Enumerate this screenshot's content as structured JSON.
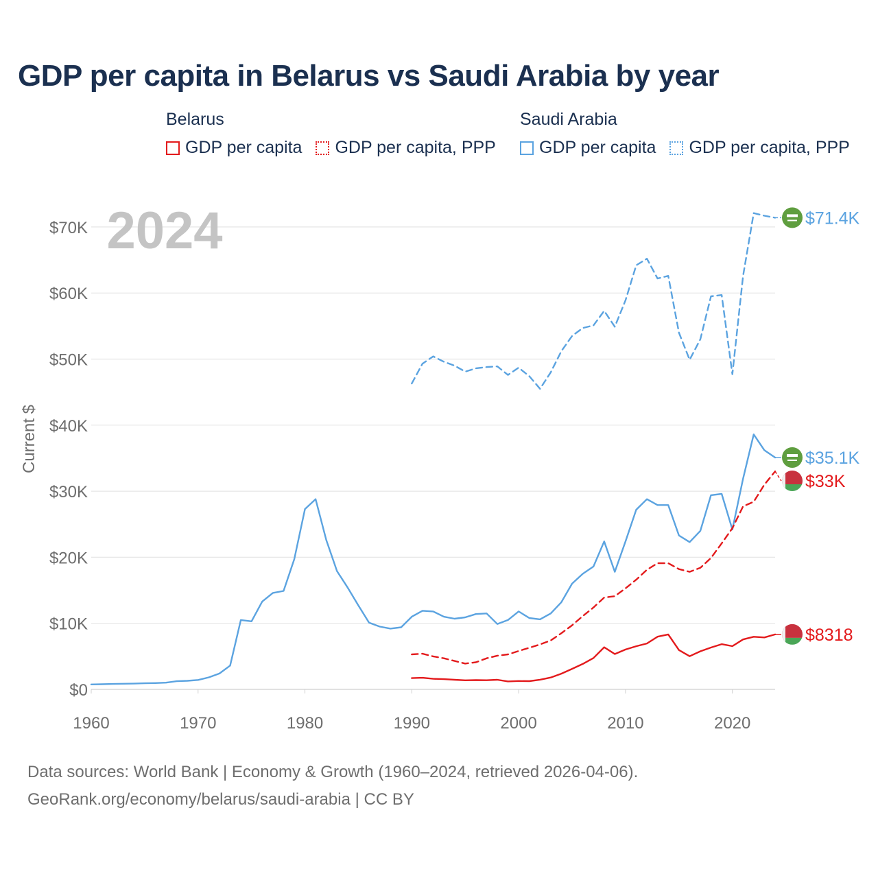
{
  "title": "GDP per capita in Belarus vs Saudi Arabia by year",
  "legend": {
    "groups": [
      {
        "country": "Belarus",
        "items": [
          {
            "label": "GDP per capita",
            "color": "#e31a1c",
            "style": "solid"
          },
          {
            "label": "GDP per capita, PPP",
            "color": "#e31a1c",
            "style": "dotted"
          }
        ]
      },
      {
        "country": "Saudi Arabia",
        "items": [
          {
            "label": "GDP per capita",
            "color": "#5ba3e0",
            "style": "solid"
          },
          {
            "label": "GDP per capita, PPP",
            "color": "#5ba3e0",
            "style": "dotted"
          }
        ]
      }
    ]
  },
  "source": {
    "line1": "Data sources: World Bank | Economy & Growth (1960–2024, retrieved 2026-04-06).",
    "line2": "GeoRank.org/economy/belarus/saudi-arabia | CC BY"
  },
  "chart_data": {
    "type": "line",
    "title": "GDP per capita in Belarus vs Saudi Arabia by year",
    "year_label": "2024",
    "ylabel": "Current $",
    "xlabel": "",
    "xlim": [
      1960,
      2024
    ],
    "ylim": [
      0,
      75000
    ],
    "x_ticks": [
      1960,
      1970,
      1980,
      1990,
      2000,
      2010,
      2020
    ],
    "y_ticks": [
      {
        "value": 0,
        "label": "$0"
      },
      {
        "value": 10000,
        "label": "$10K"
      },
      {
        "value": 20000,
        "label": "$20K"
      },
      {
        "value": 30000,
        "label": "$30K"
      },
      {
        "value": 40000,
        "label": "$40K"
      },
      {
        "value": 50000,
        "label": "$50K"
      },
      {
        "value": 60000,
        "label": "$60K"
      },
      {
        "value": 70000,
        "label": "$70K"
      }
    ],
    "series": [
      {
        "name": "Saudi Arabia GDP per capita PPP",
        "country": "Saudi Arabia",
        "color": "#5ba3e0",
        "dash": "dashed",
        "end_label": "$71.4K",
        "flag": "saudi",
        "x": [
          1990,
          1991,
          1992,
          1993,
          1994,
          1995,
          1996,
          1997,
          1998,
          1999,
          2000,
          2001,
          2002,
          2003,
          2004,
          2005,
          2006,
          2007,
          2008,
          2009,
          2010,
          2011,
          2012,
          2013,
          2014,
          2015,
          2016,
          2017,
          2018,
          2019,
          2020,
          2021,
          2022,
          2023,
          2024
        ],
        "values": [
          46300,
          49300,
          50400,
          49600,
          49000,
          48100,
          48600,
          48800,
          48900,
          47600,
          48700,
          47400,
          45500,
          48000,
          51200,
          53500,
          54700,
          55100,
          57300,
          54900,
          58900,
          64200,
          65200,
          62200,
          62600,
          54000,
          49900,
          53000,
          59500,
          59700,
          47700,
          62600,
          72100,
          71700,
          71400
        ]
      },
      {
        "name": "Saudi Arabia GDP per capita",
        "country": "Saudi Arabia",
        "color": "#5ba3e0",
        "dash": "solid",
        "end_label": "$35.1K",
        "flag": "saudi",
        "x": [
          1960,
          1961,
          1962,
          1963,
          1964,
          1965,
          1966,
          1967,
          1968,
          1969,
          1970,
          1971,
          1972,
          1973,
          1974,
          1975,
          1976,
          1977,
          1978,
          1979,
          1980,
          1981,
          1982,
          1983,
          1984,
          1985,
          1986,
          1987,
          1988,
          1989,
          1990,
          1991,
          1992,
          1993,
          1994,
          1995,
          1996,
          1997,
          1998,
          1999,
          2000,
          2001,
          2002,
          2003,
          2004,
          2005,
          2006,
          2007,
          2008,
          2009,
          2010,
          2011,
          2012,
          2013,
          2014,
          2015,
          2016,
          2017,
          2018,
          2019,
          2020,
          2021,
          2022,
          2023,
          2024
        ],
        "values": [
          750,
          780,
          820,
          850,
          870,
          920,
          960,
          1020,
          1240,
          1300,
          1420,
          1820,
          2400,
          3600,
          10500,
          10300,
          13300,
          14600,
          14900,
          19700,
          27300,
          28800,
          22600,
          17900,
          15400,
          12700,
          10100,
          9500,
          9200,
          9400,
          11000,
          11900,
          11800,
          11000,
          10700,
          10900,
          11400,
          11500,
          9900,
          10500,
          11800,
          10800,
          10600,
          11500,
          13200,
          16000,
          17500,
          18600,
          22400,
          17800,
          22400,
          27200,
          28800,
          27900,
          27900,
          23300,
          22300,
          24000,
          29400,
          29600,
          24200,
          31900,
          38600,
          36200,
          35100
        ]
      },
      {
        "name": "Belarus GDP per capita PPP",
        "country": "Belarus",
        "color": "#e31a1c",
        "dash": "dashed",
        "end_label": "$33K",
        "flag": "belarus",
        "x": [
          1990,
          1991,
          1992,
          1993,
          1994,
          1995,
          1996,
          1997,
          1998,
          1999,
          2000,
          2001,
          2002,
          2003,
          2004,
          2005,
          2006,
          2007,
          2008,
          2009,
          2010,
          2011,
          2012,
          2013,
          2014,
          2015,
          2016,
          2017,
          2018,
          2019,
          2020,
          2021,
          2022,
          2023,
          2024
        ],
        "values": [
          5300,
          5400,
          5000,
          4700,
          4300,
          3900,
          4100,
          4700,
          5100,
          5300,
          5800,
          6300,
          6800,
          7400,
          8500,
          9700,
          11100,
          12400,
          13900,
          14100,
          15300,
          16600,
          18100,
          19100,
          19100,
          18200,
          17800,
          18400,
          19900,
          22100,
          24400,
          27700,
          28400,
          31000,
          33000
        ]
      },
      {
        "name": "Belarus GDP per capita",
        "country": "Belarus",
        "color": "#e31a1c",
        "dash": "solid",
        "end_label": "$8318",
        "flag": "belarus",
        "x": [
          1990,
          1991,
          1992,
          1993,
          1994,
          1995,
          1996,
          1997,
          1998,
          1999,
          2000,
          2001,
          2002,
          2003,
          2004,
          2005,
          2006,
          2007,
          2008,
          2009,
          2010,
          2011,
          2012,
          2013,
          2014,
          2015,
          2016,
          2017,
          2018,
          2019,
          2020,
          2021,
          2022,
          2023,
          2024
        ],
        "values": [
          1700,
          1750,
          1600,
          1550,
          1450,
          1370,
          1400,
          1380,
          1450,
          1200,
          1270,
          1250,
          1460,
          1800,
          2380,
          3100,
          3850,
          4750,
          6380,
          5350,
          6030,
          6530,
          6950,
          7980,
          8320,
          5950,
          5020,
          5760,
          6330,
          6840,
          6540,
          7560,
          7960,
          7860,
          8318
        ]
      }
    ]
  }
}
